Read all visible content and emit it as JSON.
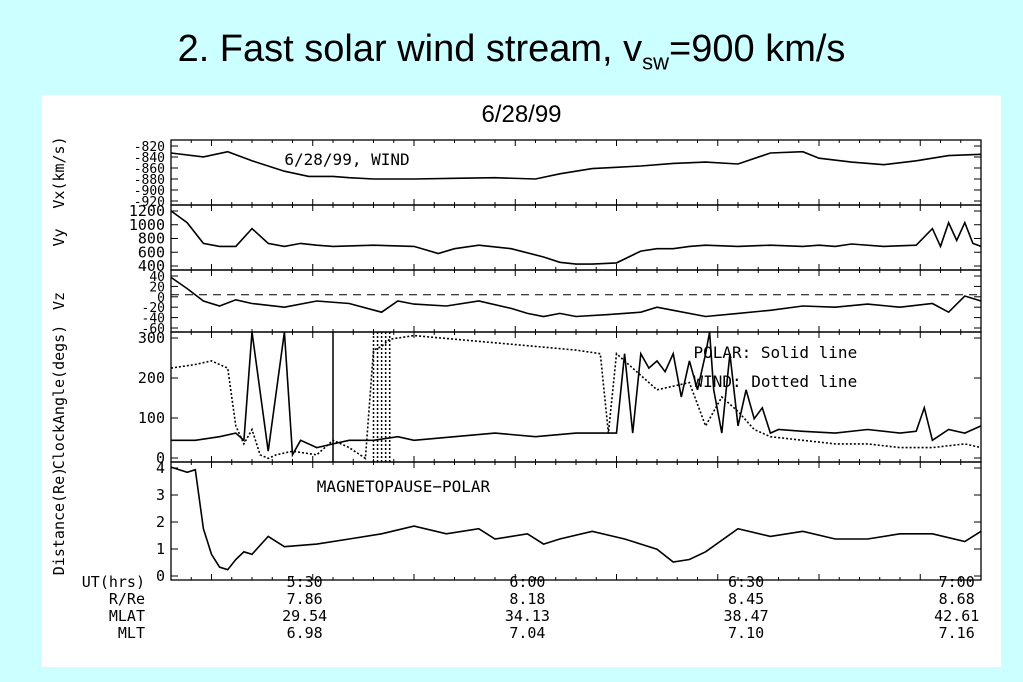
{
  "slide": {
    "title_main": "2.  Fast solar wind stream, v",
    "title_sub": "sw",
    "title_end": "=900 km/s",
    "subtitle": "6/28/99"
  },
  "colors": {
    "background": "#ccffff",
    "panel": "#ffffff",
    "ink": "#000000"
  },
  "chart_data": [
    {
      "type": "line",
      "ylabel": "Vx(km/s)",
      "annotation": "6/28/99,  WIND",
      "ylim": [
        -920,
        -820
      ],
      "yticks": [
        "-820",
        "-840",
        "-860",
        "-880",
        "-900",
        "-920"
      ],
      "series": [
        {
          "style": "solid",
          "x": [
            0,
            4,
            7,
            10,
            14,
            17,
            20,
            22,
            25,
            30,
            35,
            40,
            45,
            48,
            52,
            55,
            58,
            62,
            66,
            70,
            74,
            78,
            80,
            84,
            88,
            92,
            96,
            100
          ],
          "y": [
            -840,
            -846,
            -838,
            -852,
            -868,
            -876,
            -876,
            -878,
            -880,
            -880,
            -879,
            -878,
            -880,
            -872,
            -864,
            -862,
            -860,
            -856,
            -854,
            -857,
            -840,
            -838,
            -848,
            -854,
            -858,
            -852,
            -844,
            -842
          ]
        }
      ]
    },
    {
      "type": "line",
      "ylabel": "Vy",
      "ylim": [
        200,
        1300
      ],
      "yticks": [
        "1200",
        "1000",
        "800",
        "600",
        "400"
      ],
      "series": [
        {
          "style": "solid",
          "x": [
            0,
            2,
            4,
            6,
            8,
            10,
            12,
            14,
            16,
            18,
            20,
            25,
            30,
            33,
            35,
            38,
            42,
            46,
            48,
            50,
            52,
            55,
            58,
            60,
            62,
            64,
            66,
            70,
            74,
            78,
            80,
            82,
            84,
            88,
            92,
            94,
            95,
            96,
            97,
            98,
            99,
            100
          ],
          "y": [
            1200,
            1000,
            650,
            600,
            600,
            900,
            650,
            600,
            650,
            620,
            600,
            620,
            600,
            480,
            560,
            620,
            560,
            420,
            330,
            300,
            300,
            320,
            520,
            560,
            560,
            600,
            620,
            600,
            620,
            600,
            620,
            600,
            640,
            600,
            620,
            900,
            600,
            1000,
            700,
            1000,
            650,
            600
          ]
        }
      ]
    },
    {
      "type": "line",
      "ylabel": "Vz",
      "ylim": [
        -60,
        40
      ],
      "yticks": [
        "40",
        "20",
        "0",
        "-20",
        "-40",
        "-60"
      ],
      "dashed_zero": true,
      "series": [
        {
          "style": "solid",
          "x": [
            0,
            2,
            4,
            6,
            8,
            10,
            14,
            18,
            22,
            26,
            28,
            30,
            34,
            38,
            42,
            44,
            46,
            48,
            50,
            54,
            58,
            60,
            62,
            66,
            70,
            74,
            78,
            82,
            86,
            90,
            94,
            96,
            98,
            100
          ],
          "y": [
            28,
            10,
            -10,
            -18,
            -8,
            -14,
            -20,
            -10,
            -14,
            -28,
            -10,
            -15,
            -18,
            -10,
            -22,
            -30,
            -35,
            -30,
            -35,
            -32,
            -28,
            -20,
            -25,
            -35,
            -30,
            -25,
            -18,
            -20,
            -15,
            -20,
            -14,
            -28,
            -2,
            -10
          ]
        }
      ]
    },
    {
      "type": "line",
      "ylabel": "ClockAngle(degs)",
      "ylim": [
        0,
        360
      ],
      "yticks": [
        "300",
        "200",
        "100",
        "0"
      ],
      "legend": [
        "POLAR: Solid line",
        "WIND: Dotted line"
      ],
      "series": [
        {
          "style": "solid",
          "x": [
            0,
            3,
            6,
            8,
            9,
            10,
            12,
            14,
            15,
            16,
            18,
            20,
            22,
            25,
            28,
            30,
            35,
            40,
            45,
            50,
            53,
            55,
            56,
            57,
            58,
            59,
            60,
            61,
            62,
            63,
            64,
            65,
            66,
            66.5,
            67,
            68,
            69,
            70,
            71,
            72,
            73,
            74,
            75,
            78,
            82,
            86,
            90,
            92,
            93,
            94,
            96,
            98,
            100
          ],
          "y": [
            60,
            60,
            70,
            80,
            60,
            360,
            30,
            360,
            20,
            60,
            40,
            50,
            60,
            60,
            70,
            60,
            70,
            80,
            70,
            80,
            80,
            80,
            300,
            80,
            300,
            260,
            280,
            250,
            300,
            180,
            280,
            200,
            300,
            360,
            200,
            80,
            300,
            100,
            200,
            120,
            150,
            80,
            90,
            85,
            80,
            90,
            80,
            85,
            150,
            60,
            90,
            80,
            100
          ]
        },
        {
          "style": "dotted",
          "x": [
            0,
            3,
            5,
            7,
            8,
            9,
            10,
            11,
            12,
            13,
            15,
            18,
            20,
            22,
            24,
            25,
            26,
            27,
            30,
            35,
            40,
            45,
            50,
            53,
            54,
            55,
            60,
            64,
            66,
            68,
            70,
            72,
            74,
            78,
            82,
            86,
            90,
            94,
            98,
            100
          ],
          "y": [
            260,
            270,
            280,
            260,
            100,
            50,
            90,
            20,
            10,
            20,
            30,
            20,
            60,
            40,
            10,
            310,
            320,
            340,
            350,
            340,
            330,
            320,
            310,
            300,
            80,
            300,
            200,
            220,
            100,
            180,
            140,
            90,
            70,
            60,
            50,
            50,
            40,
            40,
            50,
            40
          ]
        }
      ],
      "vertical_spikes": [
        20,
        25,
        25.5,
        26,
        26.5,
        27
      ]
    },
    {
      "type": "line",
      "ylabel": "Distance(Re)",
      "annotation": "MAGNETOPAUSE−POLAR",
      "ylim": [
        0,
        4.6
      ],
      "yticks": [
        "4",
        "3",
        "2",
        "1",
        "0"
      ],
      "series": [
        {
          "style": "solid",
          "x": [
            0,
            2,
            3,
            4,
            5,
            6,
            7,
            8,
            9,
            10,
            12,
            14,
            18,
            22,
            26,
            30,
            34,
            38,
            40,
            44,
            46,
            48,
            52,
            56,
            58,
            60,
            62,
            64,
            66,
            70,
            74,
            78,
            82,
            86,
            90,
            94,
            98,
            100
          ],
          "y": [
            4.4,
            4.2,
            4.3,
            2.0,
            1.0,
            0.5,
            0.4,
            0.8,
            1.1,
            1.0,
            1.7,
            1.3,
            1.4,
            1.6,
            1.8,
            2.1,
            1.8,
            2.0,
            1.6,
            1.8,
            1.4,
            1.6,
            1.9,
            1.6,
            1.4,
            1.2,
            0.7,
            0.8,
            1.1,
            2.0,
            1.7,
            1.9,
            1.6,
            1.6,
            1.8,
            1.8,
            1.5,
            1.9
          ]
        }
      ]
    }
  ],
  "xaxis": {
    "rows": [
      [
        "UT(hrs)",
        "5:30",
        "6:00",
        "6:30",
        "7:00"
      ],
      [
        "R/Re",
        "7.86",
        "8.18",
        "8.45",
        "8.68"
      ],
      [
        "MLAT",
        "29.54",
        "34.13",
        "38.47",
        "42.61"
      ],
      [
        "MLT",
        "6.98",
        "7.04",
        "7.10",
        "7.16"
      ]
    ]
  }
}
